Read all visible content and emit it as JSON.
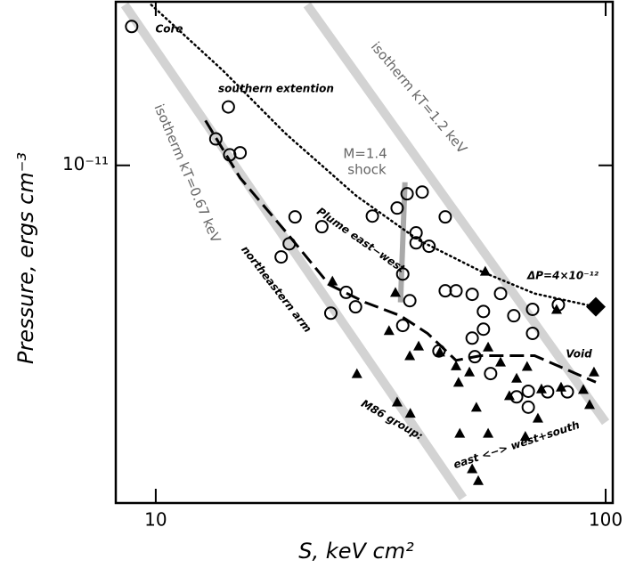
{
  "chart_data": {
    "type": "scatter",
    "x_label": "S, keV cm²",
    "y_label": "Pressure, ergs cm⁻³",
    "log_x": true,
    "log_y": true,
    "xlim": [
      8.15,
      103.7
    ],
    "ylim": [
      2.1e-12,
      2.13e-11
    ],
    "xticks": [
      10,
      100
    ],
    "yticks": [
      {
        "value": 1e-11,
        "label": "10⁻¹¹"
      }
    ],
    "annotations": [
      "Core",
      "southern extention",
      "isotherm kT=0.67 keV",
      "isotherm kT=1.2 keV",
      "M=1.4",
      "shock",
      "Plume east−west",
      "northeastern arm",
      "ΔP=4×10⁻¹²",
      "Void",
      "M86 group:",
      "east <−> west+south"
    ],
    "series": [
      {
        "marker": "line",
        "style": "isotherm",
        "color": "#d3d3d3",
        "x": [
          8.53,
          48.2
        ],
        "values": [
          2.1e-11,
          2.15e-12
        ]
      },
      {
        "marker": "line",
        "style": "isotherm",
        "color": "#d3d3d3",
        "x": [
          21.7,
          100
        ],
        "values": [
          2.1e-11,
          3.05e-12
        ]
      },
      {
        "marker": "line",
        "style": "shock",
        "color": "#a9a9a9",
        "x": [
          35.8,
          35.0
        ],
        "values": [
          9.25e-12,
          5.31e-12
        ]
      },
      {
        "marker": "line",
        "style": "dotted",
        "color": "#000000",
        "x": [
          9.77,
          14.1,
          19.4,
          27.9,
          38.4,
          52.8,
          69.5,
          95.1
        ],
        "values": [
          2.1e-11,
          1.55e-11,
          1.16e-11,
          8.69e-12,
          7.08e-12,
          6.13e-12,
          5.53e-12,
          5.2e-12
        ]
      },
      {
        "marker": "line",
        "style": "dashed",
        "color": "#000000",
        "x": [
          12.9,
          15.4,
          19.4,
          24.3,
          29.2,
          35.0,
          40.2,
          46.5,
          52.8,
          69.5,
          95.1
        ],
        "values": [
          1.23e-11,
          9.44e-12,
          7.38e-12,
          5.76e-12,
          5.31e-12,
          4.99e-12,
          4.6e-12,
          4.06e-12,
          4.15e-12,
          4.15e-12,
          3.67e-12
        ]
      },
      {
        "marker": "circle",
        "color": "#000000",
        "x": [
          8.84,
          14.5,
          13.6,
          14.6,
          15.4,
          20.4,
          19.0,
          19.8,
          23.4,
          26.5,
          24.5,
          27.8,
          30.3,
          34.4,
          36.2,
          39.1,
          37.9,
          37.9,
          40.5,
          44.0,
          35.4,
          36.7,
          35.4,
          44.0,
          46.5,
          42.6,
          50.5,
          53.5,
          53.5,
          50.5,
          51.2,
          55.5,
          58.4,
          62.5,
          63.4,
          68.8,
          68.8,
          67.3,
          74.3,
          82.2,
          78.5,
          67.3
        ],
        "values": [
          1.9e-11,
          1.31e-11,
          1.13e-11,
          1.05e-11,
          1.06e-11,
          7.88e-12,
          6.55e-12,
          6.96e-12,
          7.53e-12,
          5.56e-12,
          5.05e-12,
          5.2e-12,
          7.91e-12,
          8.21e-12,
          8.77e-12,
          8.84e-12,
          7.32e-12,
          6.99e-12,
          6.88e-12,
          7.88e-12,
          6.05e-12,
          5.35e-12,
          4.77e-12,
          5.6e-12,
          5.6e-12,
          4.24e-12,
          5.51e-12,
          5.09e-12,
          4.69e-12,
          4.5e-12,
          4.13e-12,
          3.82e-12,
          5.53e-12,
          4.99e-12,
          3.43e-12,
          5.14e-12,
          4.6e-12,
          3.52e-12,
          3.51e-12,
          3.51e-12,
          5.25e-12,
          3.27e-12
        ]
      },
      {
        "marker": "triangle",
        "color": "#000000",
        "x": [
          24.7,
          28.0,
          33.0,
          36.7,
          38.4,
          34.4,
          36.8,
          42.8,
          46.5,
          47.1,
          49.8,
          54.0,
          54.8,
          58.4,
          61.1,
          63.4,
          66.9,
          72.0,
          77.8,
          79.6,
          89.2,
          94.2,
          92.1,
          47.4,
          54.8,
          50.5,
          52.1,
          66.3,
          70.7,
          51.6,
          34.1
        ],
        "values": [
          5.86e-12,
          3.82e-12,
          4.66e-12,
          4.15e-12,
          4.34e-12,
          3.35e-12,
          3.18e-12,
          4.22e-12,
          3.96e-12,
          3.67e-12,
          3.85e-12,
          6.13e-12,
          4.32e-12,
          4.03e-12,
          3.45e-12,
          3.74e-12,
          3.95e-12,
          3.56e-12,
          5.14e-12,
          3.59e-12,
          3.55e-12,
          3.85e-12,
          3.31e-12,
          2.9e-12,
          2.9e-12,
          2.46e-12,
          2.33e-12,
          2.86e-12,
          3.11e-12,
          3.27e-12,
          5.56e-12
        ]
      },
      {
        "marker": "diamond",
        "color": "#000000",
        "x": [
          95.1
        ],
        "values": [
          5.2e-12
        ]
      }
    ]
  }
}
